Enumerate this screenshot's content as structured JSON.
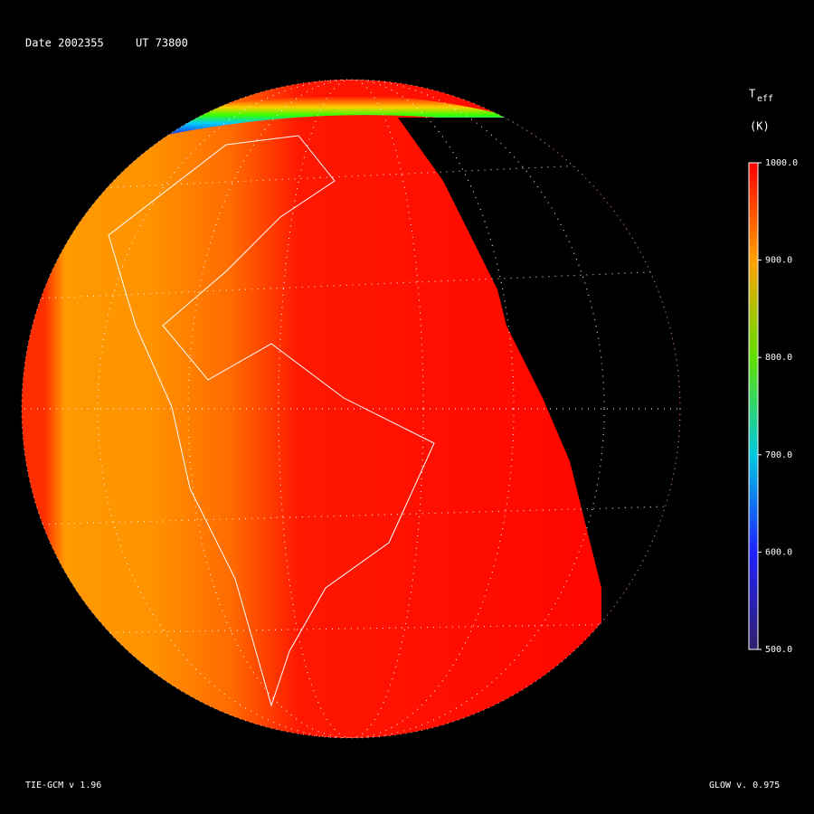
{
  "header": {
    "date": "Date 2002355",
    "ut": "UT 73800"
  },
  "colorbar": {
    "title": "T",
    "subscript": "eff",
    "unit": "(K)",
    "range": [
      500,
      1000
    ],
    "ticks": [
      {
        "value": 1000,
        "label": "1000.0"
      },
      {
        "value": 900,
        "label": "900.0"
      },
      {
        "value": 800,
        "label": "800.0"
      },
      {
        "value": 700,
        "label": "700.0"
      },
      {
        "value": 600,
        "label": "600.0"
      },
      {
        "value": 500,
        "label": "500.0"
      }
    ]
  },
  "footer": {
    "model": "TIE-GCM v 1.96",
    "glow": "GLOW v. 0.975"
  }
}
